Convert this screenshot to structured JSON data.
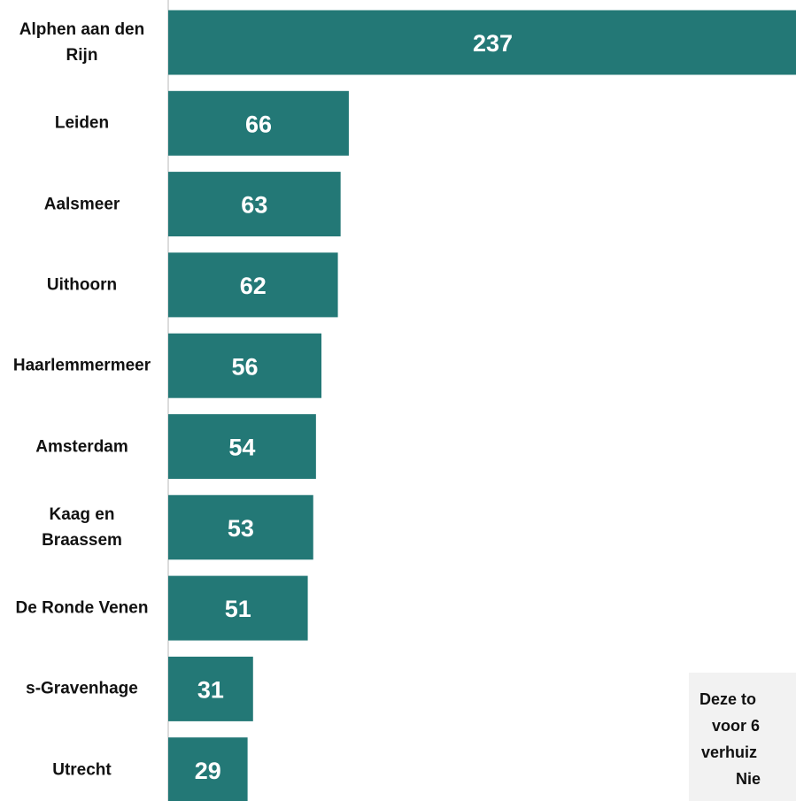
{
  "chart_data": {
    "type": "bar",
    "orientation": "horizontal",
    "categories": [
      "Alphen aan den Rijn",
      "Leiden",
      "Aalsmeer",
      "Uithoorn",
      "Haarlemmermeer",
      "Amsterdam",
      "Kaag en Braassem",
      "De Ronde Venen",
      "s-Gravenhage",
      "Utrecht"
    ],
    "values": [
      237,
      66,
      63,
      62,
      56,
      54,
      53,
      51,
      31,
      29
    ],
    "color": "#237876",
    "annotation": [
      "Deze to",
      "voor 6",
      "verhuiz",
      "Nie"
    ]
  }
}
